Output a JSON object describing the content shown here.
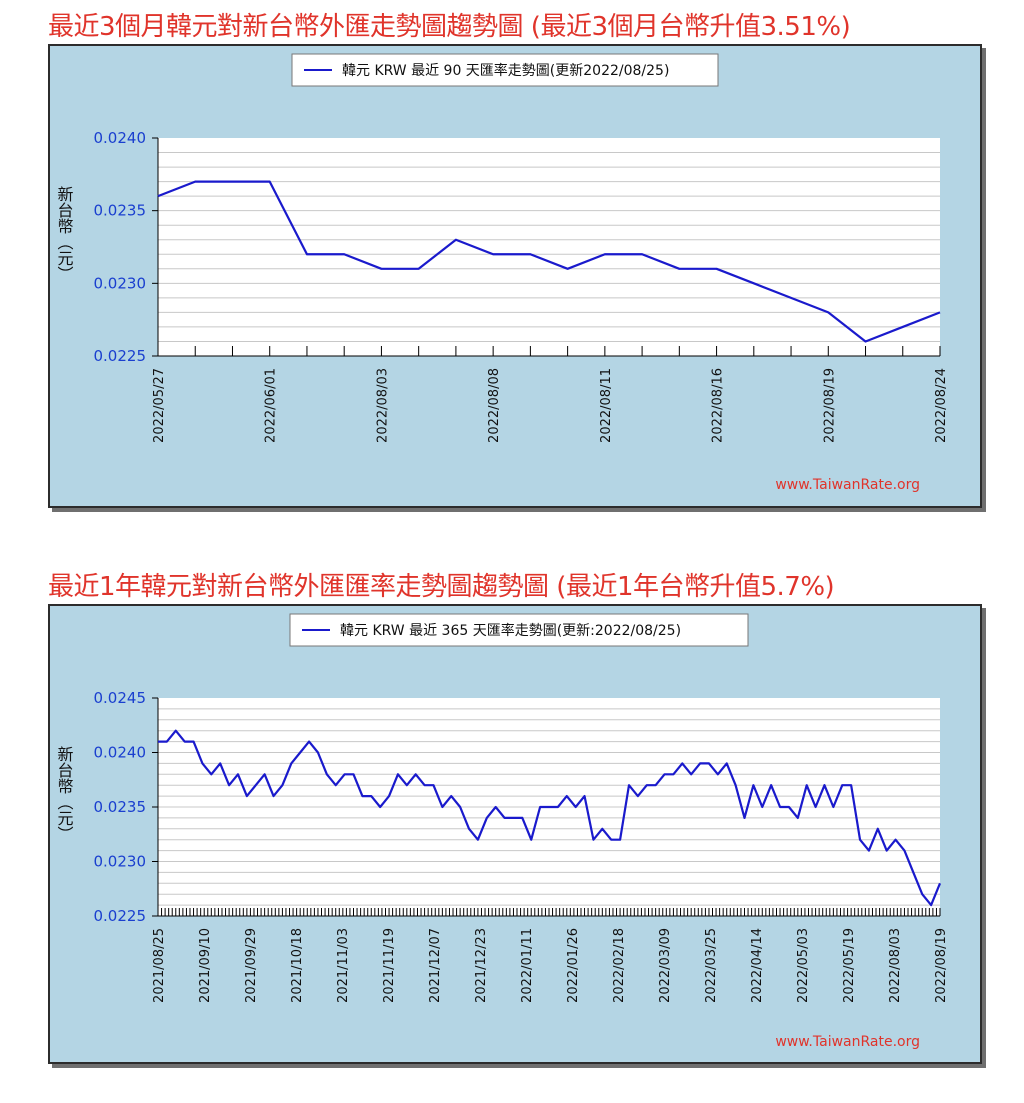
{
  "titles": {
    "top": "最近3個月韓元對新台幣外匯走勢圖趨勢圖 (最近3個月台幣升值3.51%)",
    "bottom": "最近1年韓元對新台幣外匯匯率走勢圖趨勢圖 (最近1年台幣升值5.7%)"
  },
  "watermark": "www.TaiwanRate.org",
  "colors": {
    "title": "#e0342b",
    "series": "#1a1acc",
    "plot_bg": "#ffffff",
    "frame_bg": "#b4d5e4"
  },
  "chart_data": [
    {
      "type": "line",
      "legend": "韓元 KRW 最近 90 天匯率走勢圖(更新2022/08/25)",
      "ylabel": "新台幣（元）",
      "ylim": [
        0.0225,
        0.024
      ],
      "yticks": [
        "0.0240",
        "0.0235",
        "0.0230",
        "0.0225"
      ],
      "xticks": [
        "2022/05/27",
        "2022/06/01",
        "2022/08/03",
        "2022/08/08",
        "2022/08/11",
        "2022/08/16",
        "2022/08/19",
        "2022/08/24"
      ],
      "series": [
        {
          "values": [
            0.0236,
            0.0237,
            0.0237,
            0.0237,
            0.0232,
            0.0232,
            0.0231,
            0.0231,
            0.0233,
            0.0232,
            0.0232,
            0.0231,
            0.0232,
            0.0232,
            0.0231,
            0.0231,
            0.023,
            0.0229,
            0.0228,
            0.0226,
            0.0227,
            0.0228
          ]
        }
      ]
    },
    {
      "type": "line",
      "legend": "韓元 KRW 最近 365 天匯率走勢圖(更新:2022/08/25)",
      "ylabel": "新台幣（元）",
      "ylim": [
        0.0225,
        0.0245
      ],
      "yticks": [
        "0.0245",
        "0.0240",
        "0.0235",
        "0.0230",
        "0.0225"
      ],
      "xticks": [
        "2021/08/25",
        "2021/09/10",
        "2021/09/29",
        "2021/10/18",
        "2021/11/03",
        "2021/11/19",
        "2021/12/07",
        "2021/12/23",
        "2022/01/11",
        "2022/01/26",
        "2022/02/18",
        "2022/03/09",
        "2022/03/25",
        "2022/04/14",
        "2022/05/03",
        "2022/05/19",
        "2022/08/03",
        "2022/08/19"
      ],
      "series": [
        {
          "values": [
            0.0241,
            0.0241,
            0.0242,
            0.0241,
            0.0241,
            0.0239,
            0.0238,
            0.0239,
            0.0237,
            0.0238,
            0.0236,
            0.0237,
            0.0238,
            0.0236,
            0.0237,
            0.0239,
            0.024,
            0.0241,
            0.024,
            0.0238,
            0.0237,
            0.0238,
            0.0238,
            0.0236,
            0.0236,
            0.0235,
            0.0236,
            0.0238,
            0.0237,
            0.0238,
            0.0237,
            0.0237,
            0.0235,
            0.0236,
            0.0235,
            0.0233,
            0.0232,
            0.0234,
            0.0235,
            0.0234,
            0.0234,
            0.0234,
            0.0232,
            0.0235,
            0.0235,
            0.0235,
            0.0236,
            0.0235,
            0.0236,
            0.0232,
            0.0233,
            0.0232,
            0.0232,
            0.0237,
            0.0236,
            0.0237,
            0.0237,
            0.0238,
            0.0238,
            0.0239,
            0.0238,
            0.0239,
            0.0239,
            0.0238,
            0.0239,
            0.0237,
            0.0234,
            0.0237,
            0.0235,
            0.0237,
            0.0235,
            0.0235,
            0.0234,
            0.0237,
            0.0235,
            0.0237,
            0.0235,
            0.0237,
            0.0237,
            0.0232,
            0.0231,
            0.0233,
            0.0231,
            0.0232,
            0.0231,
            0.0229,
            0.0227,
            0.0226,
            0.0228
          ]
        }
      ]
    }
  ]
}
